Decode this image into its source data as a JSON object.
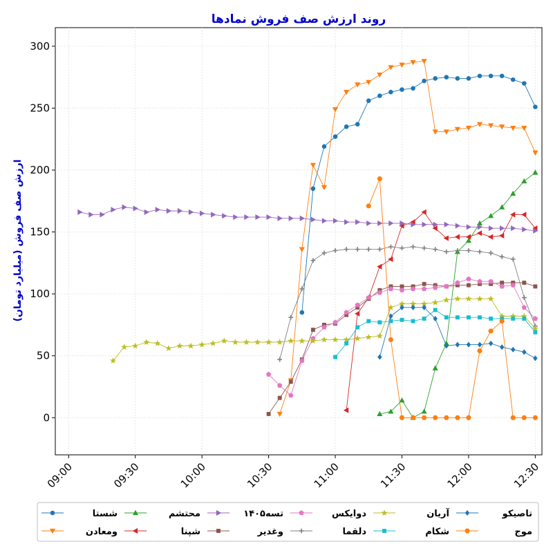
{
  "chart_data": {
    "type": "line",
    "title": "روند ارزش صف فروش نمادها",
    "ylabel": "ارزش صف فروش (میلیارد تومان)",
    "xlabel": "",
    "title_color": "#0000cc",
    "ylim": [
      -30,
      315
    ],
    "xlim": [
      "08:54",
      "12:33"
    ],
    "yticks": [
      0,
      50,
      100,
      150,
      200,
      250,
      300
    ],
    "xticks": [
      "09:00",
      "09:30",
      "10:00",
      "10:30",
      "11:00",
      "11:30",
      "12:00",
      "12:30"
    ],
    "grid": true,
    "legend_position": "bottom",
    "series": [
      {
        "name": "شستا",
        "color": "#1f77b4",
        "marker": "circle",
        "x": [
          "10:45",
          "10:50",
          "10:55",
          "11:00",
          "11:05",
          "11:10",
          "11:15",
          "11:20",
          "11:25",
          "11:30",
          "11:35",
          "11:40",
          "11:45",
          "11:50",
          "11:55",
          "12:00",
          "12:05",
          "12:10",
          "12:15",
          "12:20",
          "12:25",
          "12:30"
        ],
        "y": [
          85,
          185,
          219,
          227,
          235,
          237,
          256,
          260,
          263,
          265,
          266,
          272,
          274,
          275,
          274,
          274,
          276,
          276,
          276,
          273,
          270,
          251
        ]
      },
      {
        "name": "ومعادن",
        "color": "#ff7f0e",
        "marker": "triangle-down",
        "x": [
          "10:35",
          "10:40",
          "10:45",
          "10:50",
          "10:55",
          "11:00",
          "11:05",
          "11:10",
          "11:15",
          "11:20",
          "11:25",
          "11:30",
          "11:35",
          "11:40",
          "11:45",
          "11:50",
          "11:55",
          "12:00",
          "12:05",
          "12:10",
          "12:15",
          "12:20",
          "12:25",
          "12:30"
        ],
        "y": [
          3,
          30,
          136,
          204,
          186,
          249,
          263,
          269,
          271,
          277,
          283,
          285,
          287,
          288,
          231,
          231,
          233,
          234,
          237,
          236,
          235,
          234,
          234,
          214
        ]
      },
      {
        "name": "محتشم",
        "color": "#2ca02c",
        "marker": "triangle-up",
        "x": [
          "11:20",
          "11:25",
          "11:30",
          "11:35",
          "11:40",
          "11:45",
          "11:50",
          "11:55",
          "12:00",
          "12:05",
          "12:10",
          "12:15",
          "12:20",
          "12:25",
          "12:30"
        ],
        "y": [
          3,
          5,
          14,
          0,
          5,
          40,
          60,
          134,
          143,
          157,
          163,
          170,
          181,
          191,
          198
        ]
      },
      {
        "name": "شپنا",
        "color": "#d62728",
        "marker": "triangle-left",
        "x": [
          "11:05",
          "11:10",
          "11:15",
          "11:20",
          "11:25",
          "11:30",
          "11:35",
          "11:40",
          "11:45",
          "11:50",
          "11:55",
          "12:00",
          "12:05",
          "12:10",
          "12:15",
          "12:20",
          "12:25",
          "12:30"
        ],
        "y": [
          6,
          84,
          97,
          122,
          128,
          155,
          158,
          166,
          153,
          145,
          146,
          146,
          149,
          146,
          147,
          164,
          164,
          153
        ]
      },
      {
        "name": "تسه۱۴۰۵",
        "color": "#9467bd",
        "marker": "triangle-right",
        "x": [
          "09:05",
          "09:10",
          "09:15",
          "09:20",
          "09:25",
          "09:30",
          "09:35",
          "09:40",
          "09:45",
          "09:50",
          "09:55",
          "10:00",
          "10:05",
          "10:10",
          "10:15",
          "10:20",
          "10:25",
          "10:30",
          "10:35",
          "10:40",
          "10:45",
          "10:50",
          "10:55",
          "11:00",
          "11:05",
          "11:10",
          "11:15",
          "11:20",
          "11:25",
          "11:30",
          "11:35",
          "11:40",
          "11:45",
          "11:50",
          "11:55",
          "12:00",
          "12:05",
          "12:10",
          "12:15",
          "12:20",
          "12:25",
          "12:30"
        ],
        "y": [
          166,
          164,
          164,
          168,
          170,
          169,
          166,
          168,
          167,
          167,
          166,
          165,
          164,
          163,
          162,
          162,
          162,
          162,
          161,
          161,
          161,
          160,
          159,
          159,
          158,
          158,
          157,
          157,
          157,
          157,
          156,
          156,
          156,
          156,
          155,
          154,
          154,
          153,
          153,
          153,
          152,
          151
        ]
      },
      {
        "name": "وغدیر",
        "color": "#8c564b",
        "marker": "square",
        "x": [
          "10:30",
          "10:35",
          "10:40",
          "10:45",
          "10:50",
          "10:55",
          "11:00",
          "11:05",
          "11:10",
          "11:15",
          "11:20",
          "11:25",
          "11:30",
          "11:35",
          "11:40",
          "11:45",
          "11:50",
          "11:55",
          "12:00",
          "12:05",
          "12:10",
          "12:15",
          "12:20",
          "12:25",
          "12:30"
        ],
        "y": [
          3,
          16,
          29,
          47,
          71,
          75,
          76,
          83,
          89,
          96,
          103,
          106,
          106,
          106,
          108,
          107,
          106,
          107,
          107,
          108,
          108,
          109,
          109,
          109,
          106
        ]
      },
      {
        "name": "دوایکس",
        "color": "#e377c2",
        "marker": "pentagon",
        "x": [
          "10:30",
          "10:35",
          "10:40",
          "10:45",
          "10:50",
          "10:55",
          "11:00",
          "11:05",
          "11:10",
          "11:15",
          "11:20",
          "11:25",
          "11:30",
          "11:35",
          "11:40",
          "11:45",
          "11:50",
          "11:55",
          "12:00",
          "12:05",
          "12:10",
          "12:15",
          "12:20",
          "12:25",
          "12:30"
        ],
        "y": [
          35,
          26,
          18,
          46,
          64,
          73,
          77,
          85,
          91,
          97,
          101,
          104,
          103,
          104,
          104,
          105,
          106,
          109,
          112,
          110,
          110,
          106,
          107,
          89,
          80
        ]
      },
      {
        "name": "دلقما",
        "color": "#7f7f7f",
        "marker": "plus",
        "x": [
          "10:35",
          "10:40",
          "10:45",
          "10:50",
          "10:55",
          "11:00",
          "11:05",
          "11:10",
          "11:15",
          "11:20",
          "11:25",
          "11:30",
          "11:35",
          "11:40",
          "11:45",
          "11:50",
          "11:55",
          "12:00",
          "12:05",
          "12:10",
          "12:15",
          "12:20",
          "12:25",
          "12:30"
        ],
        "y": [
          47,
          81,
          104,
          127,
          133,
          135,
          136,
          136,
          136,
          136,
          138,
          137,
          138,
          137,
          136,
          134,
          135,
          135,
          134,
          133,
          130,
          128,
          97,
          74
        ]
      },
      {
        "name": "آریان",
        "color": "#bcbd22",
        "marker": "star",
        "x": [
          "09:20",
          "09:25",
          "09:30",
          "09:35",
          "09:40",
          "09:45",
          "09:50",
          "09:55",
          "10:00",
          "10:05",
          "10:10",
          "10:15",
          "10:20",
          "10:25",
          "10:30",
          "10:35",
          "10:40",
          "10:45",
          "10:50",
          "10:55",
          "11:00",
          "11:05",
          "11:10",
          "11:15",
          "11:20",
          "11:25",
          "11:30",
          "11:35",
          "11:40",
          "11:45",
          "11:50",
          "11:55",
          "12:00",
          "12:05",
          "12:10",
          "12:15",
          "12:20",
          "12:25",
          "12:30"
        ],
        "y": [
          46,
          57,
          58,
          61,
          60,
          56,
          58,
          58,
          59,
          60,
          62,
          61,
          61,
          61,
          61,
          61,
          62,
          62,
          62,
          63,
          63,
          63,
          64,
          65,
          66,
          89,
          92,
          92,
          92,
          93,
          95,
          96,
          96,
          96,
          96,
          82,
          82,
          82,
          72
        ]
      },
      {
        "name": "شکام",
        "color": "#17becf",
        "marker": "square",
        "x": [
          "11:00",
          "11:05",
          "11:10",
          "11:15",
          "11:20",
          "11:25",
          "11:30",
          "11:35",
          "11:40",
          "11:45",
          "11:50",
          "11:55",
          "12:00",
          "12:05",
          "12:10",
          "12:15",
          "12:20",
          "12:25",
          "12:30"
        ],
        "y": [
          49,
          60,
          73,
          78,
          77,
          78,
          79,
          78,
          80,
          87,
          81,
          81,
          81,
          81,
          80,
          80,
          80,
          80,
          69
        ]
      },
      {
        "name": "تاصیکو",
        "color": "#1f77b4",
        "marker": "diamond",
        "x": [
          "11:20",
          "11:25",
          "11:30",
          "11:35",
          "11:40",
          "11:45",
          "11:50",
          "11:55",
          "12:00",
          "12:05",
          "12:10",
          "12:15",
          "12:20",
          "12:25",
          "12:30"
        ],
        "y": [
          49,
          82,
          89,
          89,
          89,
          80,
          58,
          59,
          59,
          59,
          60,
          57,
          55,
          53,
          48
        ]
      },
      {
        "name": "موج",
        "color": "#ff7f0e",
        "marker": "hexagon",
        "x": [
          "11:15",
          "11:20",
          "11:25",
          "11:30",
          "11:35",
          "11:40",
          "11:45",
          "11:50",
          "11:55",
          "12:00",
          "12:05",
          "12:10",
          "12:15",
          "12:20",
          "12:25",
          "12:30"
        ],
        "y": [
          171,
          193,
          63,
          0,
          0,
          0,
          0,
          0,
          0,
          0,
          54,
          70,
          78,
          0,
          0,
          0
        ]
      }
    ]
  }
}
